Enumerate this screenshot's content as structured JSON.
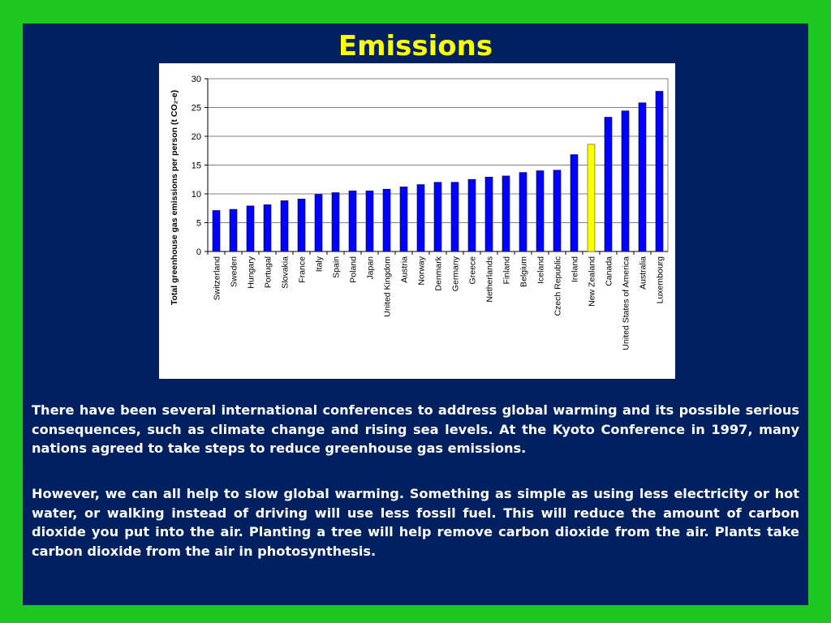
{
  "slide": {
    "title": "Emissions",
    "paragraph1": "There have been several international conferences to address global warming and its possible serious consequences, such as climate change and rising sea levels. At the Kyoto Conference in 1997, many nations agreed to take steps to reduce greenhouse gas emissions.",
    "paragraph2": "However, we can all help to slow global warming. Something as simple as using less electricity or hot water, or walking instead of driving will use less fossil fuel. This will reduce the amount of carbon dioxide you put into the air. Planting a tree will help remove carbon dioxide from the air. Plants take carbon dioxide from the air in photosynthesis."
  },
  "colors": {
    "frame": "#1ec81e",
    "slide_bg": "#002060",
    "title": "#ffff00",
    "bar": "#0000ff",
    "highlight_bar": "#ffff00"
  },
  "chart_data": {
    "type": "bar",
    "title": "",
    "xlabel": "",
    "ylabel": "Total greenhouse gas emissions per person (t CO₂-e)",
    "ylim": [
      0,
      30
    ],
    "yticks": [
      0,
      5,
      10,
      15,
      20,
      25,
      30
    ],
    "grid": true,
    "legend": "none",
    "highlight": "New Zealand",
    "categories": [
      "Switzerland",
      "Sweden",
      "Hungary",
      "Portugal",
      "Slovakia",
      "France",
      "Italy",
      "Spain",
      "Poland",
      "Japan",
      "United Kingdom",
      "Austria",
      "Norway",
      "Denmark",
      "Germany",
      "Greece",
      "Netherlands",
      "Finland",
      "Belgium",
      "Iceland",
      "Czech Republic",
      "Ireland",
      "New Zealand",
      "Canada",
      "United States of America",
      "Australia",
      "Luxembourg"
    ],
    "values": [
      7.1,
      7.3,
      7.9,
      8.1,
      8.8,
      9.1,
      9.9,
      10.2,
      10.5,
      10.5,
      10.8,
      11.2,
      11.6,
      12.0,
      12.0,
      12.5,
      12.9,
      13.1,
      13.7,
      14.0,
      14.1,
      16.8,
      18.6,
      23.3,
      24.4,
      25.8,
      27.8
    ]
  }
}
